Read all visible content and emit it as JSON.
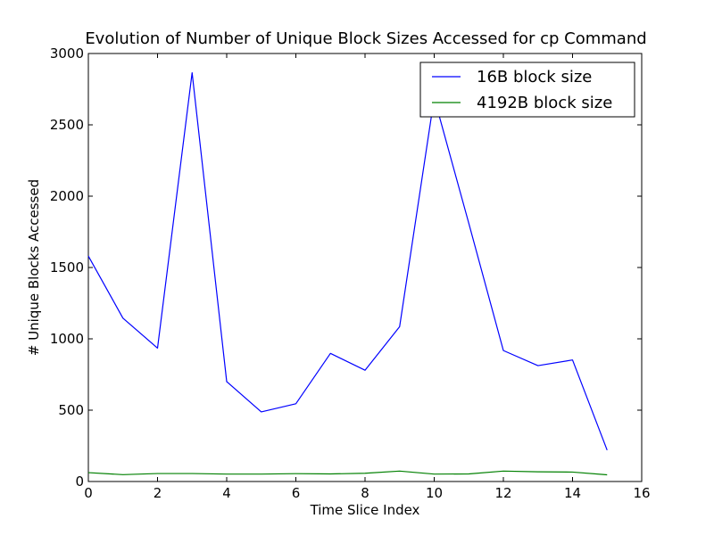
{
  "chart_data": {
    "type": "line",
    "title": "Evolution of Number of Unique Block Sizes Accessed for cp Command",
    "xlabel": "Time Slice Index",
    "ylabel": "# Unique Blocks Accessed",
    "xlim": [
      0,
      16
    ],
    "ylim": [
      0,
      3000
    ],
    "xticks": [
      0,
      2,
      4,
      6,
      8,
      10,
      12,
      14,
      16
    ],
    "yticks": [
      0,
      500,
      1000,
      1500,
      2000,
      2500,
      3000
    ],
    "x": [
      0,
      1,
      2,
      3,
      4,
      5,
      6,
      7,
      8,
      9,
      10,
      11,
      12,
      13,
      14,
      15
    ],
    "series": [
      {
        "name": "16B block size",
        "color": "#0000ff",
        "values": [
          1580,
          1145,
          935,
          2865,
          700,
          488,
          545,
          898,
          780,
          1085,
          2690,
          1810,
          918,
          812,
          852,
          220
        ]
      },
      {
        "name": "4192B block size",
        "color": "#008000",
        "values": [
          62,
          48,
          56,
          56,
          52,
          52,
          55,
          53,
          58,
          73,
          52,
          53,
          73,
          68,
          66,
          47
        ]
      }
    ],
    "grid": false,
    "legend_position": "top-right"
  }
}
